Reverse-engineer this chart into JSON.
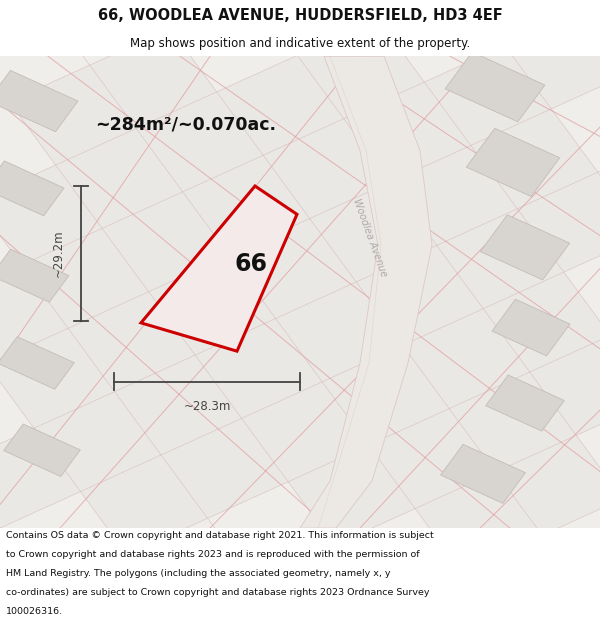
{
  "title": "66, WOODLEA AVENUE, HUDDERSFIELD, HD3 4EF",
  "subtitle": "Map shows position and indicative extent of the property.",
  "footer_lines": [
    "Contains OS data © Crown copyright and database right 2021. This information is subject to Crown copyright and database rights 2023 and is reproduced with the permission of",
    "HM Land Registry. The polygons (including the associated geometry, namely x, y co-ordinates) are subject to Crown copyright and database rights 2023 Ordnance Survey",
    "100026316."
  ],
  "area_label": "~284m²/~0.070ac.",
  "width_label": "~28.3m",
  "height_label": "~29.2m",
  "plot_number": "66",
  "plot_edge_color": "#cc0000",
  "dim_color": "#444444",
  "street_label_color": "#b0aaaa",
  "title_color": "#111111",
  "map_bg": "#f0eeeb",
  "parcel_fc": "#eae8e5",
  "parcel_ec": "#d4b8b8",
  "bld_fc": "#d8d4d0",
  "bld_ec": "#c4bcb8",
  "road_fc": "#e8e4e0",
  "road_ec": "#d4c0c0",
  "pink_line": "#e09898"
}
